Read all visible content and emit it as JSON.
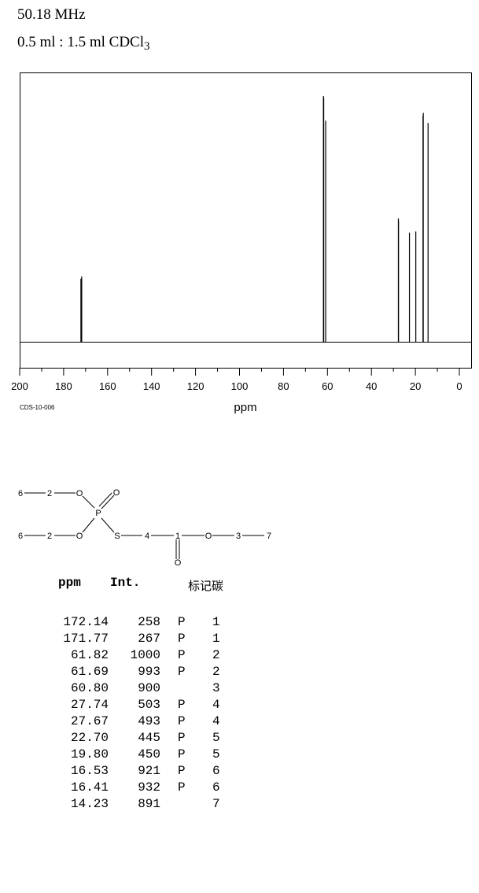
{
  "header": {
    "frequency": "50.18 MHz",
    "solvent_main": "0.5 ml : 1.5 ml CDCl",
    "solvent_sub": "3"
  },
  "chart_data": {
    "type": "line",
    "title": "",
    "xlabel": "ppm",
    "ylabel": "",
    "xlim": [
      200,
      0
    ],
    "x_reversed": true,
    "xticks": [
      200,
      180,
      160,
      140,
      120,
      100,
      80,
      60,
      40,
      20,
      0
    ],
    "code": "CDS-10-006",
    "peaks": [
      {
        "ppm": 172.14,
        "intensity": 258
      },
      {
        "ppm": 171.77,
        "intensity": 267
      },
      {
        "ppm": 61.82,
        "intensity": 1000
      },
      {
        "ppm": 61.69,
        "intensity": 993
      },
      {
        "ppm": 60.8,
        "intensity": 900
      },
      {
        "ppm": 27.74,
        "intensity": 503
      },
      {
        "ppm": 27.67,
        "intensity": 493
      },
      {
        "ppm": 22.7,
        "intensity": 445
      },
      {
        "ppm": 19.8,
        "intensity": 450
      },
      {
        "ppm": 16.53,
        "intensity": 921
      },
      {
        "ppm": 16.41,
        "intensity": 932
      },
      {
        "ppm": 14.23,
        "intensity": 891
      }
    ]
  },
  "structure": {
    "labels": [
      "6",
      "2",
      "O",
      "O",
      "P",
      "6",
      "2",
      "O",
      "S",
      "4",
      "1",
      "O",
      "3",
      "7",
      "O"
    ]
  },
  "table": {
    "headers": {
      "ppm": "ppm",
      "int": "Int.",
      "carbon": "标记碳"
    },
    "rows": [
      {
        "ppm": "172.14",
        "int": "258",
        "flag": "P",
        "id": "1"
      },
      {
        "ppm": "171.77",
        "int": "267",
        "flag": "P",
        "id": "1"
      },
      {
        "ppm": "61.82",
        "int": "1000",
        "flag": "P",
        "id": "2"
      },
      {
        "ppm": "61.69",
        "int": "993",
        "flag": "P",
        "id": "2"
      },
      {
        "ppm": "60.80",
        "int": "900",
        "flag": "",
        "id": "3"
      },
      {
        "ppm": "27.74",
        "int": "503",
        "flag": "P",
        "id": "4"
      },
      {
        "ppm": "27.67",
        "int": "493",
        "flag": "P",
        "id": "4"
      },
      {
        "ppm": "22.70",
        "int": "445",
        "flag": "P",
        "id": "5"
      },
      {
        "ppm": "19.80",
        "int": "450",
        "flag": "P",
        "id": "5"
      },
      {
        "ppm": "16.53",
        "int": "921",
        "flag": "P",
        "id": "6"
      },
      {
        "ppm": "16.41",
        "int": "932",
        "flag": "P",
        "id": "6"
      },
      {
        "ppm": "14.23",
        "int": "891",
        "flag": "",
        "id": "7"
      }
    ]
  }
}
